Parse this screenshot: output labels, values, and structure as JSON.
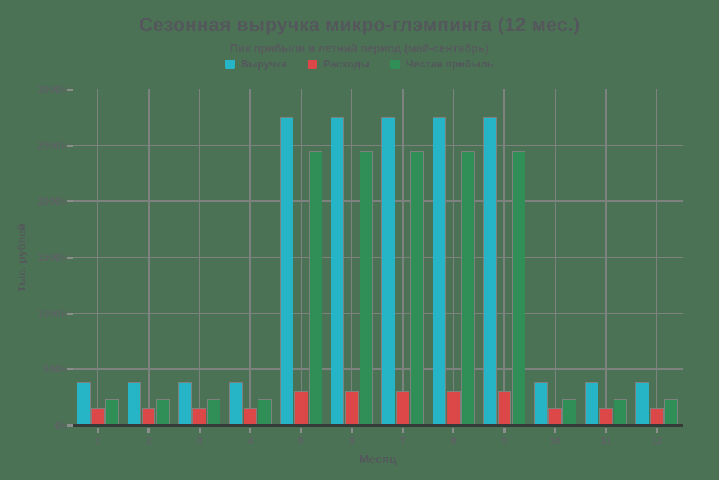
{
  "colors": {
    "background": "#4b7254",
    "gridline": "#7e827f",
    "axis_line": "#343b38",
    "title_text": "#54585c",
    "tick_text": "#5d6265"
  },
  "chart_data": {
    "type": "bar",
    "title": "Сезонная выручка микро-глэмпинга (12 мес.)",
    "subtitle": "Пик прибыли в летний период (май-сентябрь)",
    "xlabel": "Месяц",
    "ylabel": "Тыс. рублей",
    "categories": [
      "1",
      "2",
      "3",
      "4",
      "5",
      "6",
      "7",
      "8",
      "9",
      "10",
      "11",
      "12"
    ],
    "series": [
      {
        "name": "Выручка",
        "color": "#25b5c6",
        "values": [
          380,
          380,
          380,
          380,
          2750,
          2750,
          2750,
          2750,
          2750,
          380,
          380,
          380
        ]
      },
      {
        "name": "Расходы",
        "color": "#dc4747",
        "values": [
          150,
          150,
          150,
          150,
          300,
          300,
          300,
          300,
          300,
          150,
          150,
          150
        ]
      },
      {
        "name": "Чистая прибыль",
        "color": "#2f8f57",
        "values": [
          230,
          230,
          230,
          230,
          2450,
          2450,
          2450,
          2450,
          2450,
          230,
          230,
          230
        ]
      }
    ],
    "ylim": [
      0,
      3000
    ],
    "ytick_step": 500,
    "ytick_labels": [
      "0k",
      "500k",
      "1000k",
      "1500k",
      "2000k",
      "2500k",
      "3000k"
    ],
    "legend_position": "top",
    "grid": true
  }
}
